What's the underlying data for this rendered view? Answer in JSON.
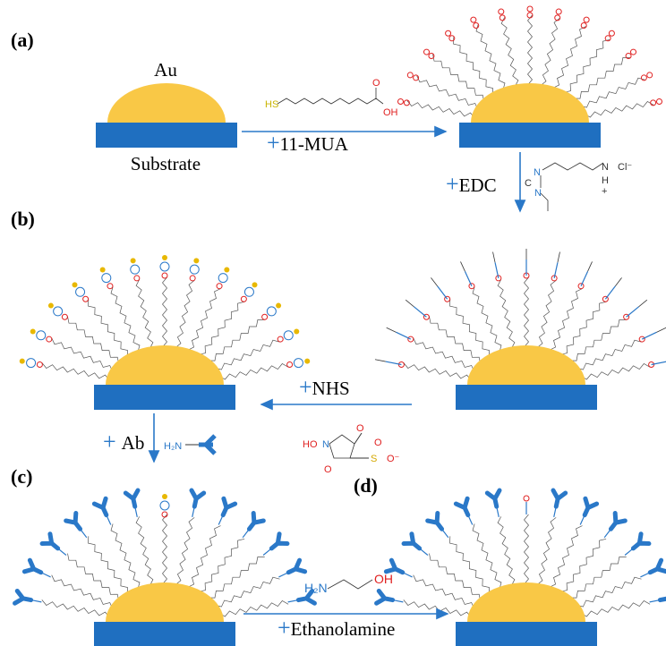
{
  "panels": {
    "a": "(a)",
    "b": "(b)",
    "c": "(c)",
    "d": "(d)"
  },
  "labels": {
    "au": "Au",
    "substrate": "Substrate"
  },
  "steps": [
    {
      "reagent": "11-MUA"
    },
    {
      "reagent": "EDC"
    },
    {
      "reagent": "NHS"
    },
    {
      "reagent": "Ab"
    },
    {
      "reagent": "Ethanolamine"
    }
  ],
  "structures": {
    "mua": [
      "HS",
      "O",
      "OH"
    ],
    "edc": [
      "N",
      "C",
      "N",
      "N",
      "H",
      "Cl⁻",
      "+"
    ],
    "nhs": [
      "HO",
      "N",
      "O",
      "O",
      "S",
      "O",
      "O⁻"
    ],
    "ab": [
      "H₂N"
    ],
    "ethanolamine": [
      "H₂N",
      "OH"
    ]
  }
}
